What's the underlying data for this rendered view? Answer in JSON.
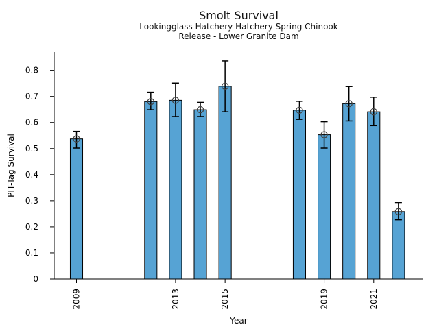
{
  "chart_data": {
    "type": "bar",
    "title": "Smolt Survival",
    "subtitle": [
      "Lookingglass Hatchery Hatchery Spring Chinook",
      "Release - Lower Granite Dam"
    ],
    "xlabel": "Year",
    "ylabel": "PIT-Tag Survival",
    "x": [
      2009,
      2012,
      2013,
      2014,
      2015,
      2018,
      2019,
      2020,
      2021,
      2022
    ],
    "values": [
      0.537,
      0.68,
      0.685,
      0.649,
      0.739,
      0.647,
      0.553,
      0.672,
      0.641,
      0.258
    ],
    "error_low": [
      0.502,
      0.649,
      0.623,
      0.623,
      0.641,
      0.612,
      0.502,
      0.606,
      0.588,
      0.227
    ],
    "error_high": [
      0.566,
      0.716,
      0.751,
      0.677,
      0.836,
      0.681,
      0.603,
      0.738,
      0.697,
      0.293
    ],
    "xticks": [
      "2009",
      "2013",
      "2015",
      "2019",
      "2021"
    ],
    "yticks": [
      "0",
      "0.1",
      "0.2",
      "0.3",
      "0.4",
      "0.5",
      "0.6",
      "0.7",
      "0.8"
    ],
    "xlim": [
      2008.1,
      2023.0
    ],
    "ylim": [
      0,
      0.87
    ],
    "bar_width_years": 0.5,
    "bar_color": "#56a3d4",
    "bar_edge_color": "#000000",
    "error_color": "#000000",
    "marker": "open-circle",
    "marker_color": "#444444",
    "grid": false,
    "legend": null
  }
}
